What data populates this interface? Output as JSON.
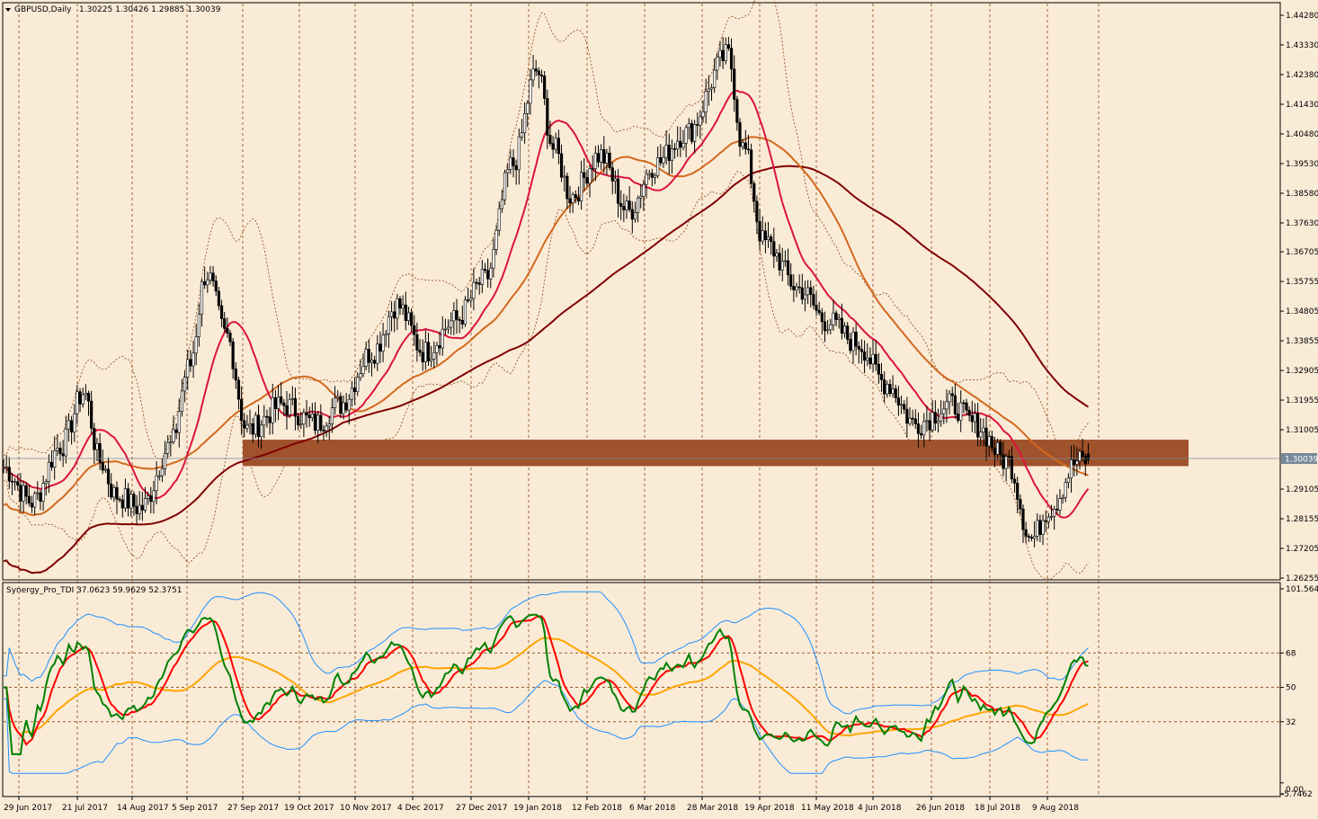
{
  "main_panel": {
    "symbol_label": "GBPUSD,Daily",
    "ohlc_label": "1.30225 1.30426 1.29885 1.30039",
    "current_price_label": "1.30039",
    "price_labels": [
      "1.44280",
      "1.43330",
      "1.42380",
      "1.41430",
      "1.40480",
      "1.39530",
      "1.38580",
      "1.37630",
      "1.36705",
      "1.35755",
      "1.34805",
      "1.33855",
      "1.32905",
      "1.31955",
      "1.31005",
      "1.30039",
      "1.29105",
      "1.28155",
      "1.27205",
      "1.26255"
    ]
  },
  "indicator_panel": {
    "label": "Synergy_Pro_TDI 37.0623 59.9629 52.3751",
    "level_labels": [
      "101.5643",
      "68",
      "50",
      "32",
      "0.00",
      "-5.7462"
    ]
  },
  "time_axis": {
    "labels": [
      "29 Jun 2017",
      "21 Jul 2017",
      "14 Aug 2017",
      "5 Sep 2017",
      "27 Sep 2017",
      "19 Oct 2017",
      "10 Nov 2017",
      "4 Dec 2017",
      "27 Dec 2017",
      "19 Jan 2018",
      "12 Feb 2018",
      "6 Mar 2018",
      "28 Mar 2018",
      "19 Apr 2018",
      "11 May 2018",
      "4 Jun 2018",
      "26 Jun 2018",
      "18 Jul 2018",
      "9 Aug 2018"
    ]
  },
  "colors": {
    "background": "#FAEBD7",
    "candle": "#000000",
    "ma_fast": "#DC143C",
    "ma_mid": "#D2691E",
    "ma_slow": "#800000",
    "zone": "#A0522D",
    "bands": "#8B4513",
    "rsi_line": "#008000",
    "signal_line": "#FF0000",
    "base_line": "#FFA500",
    "vol_band": "#1E90FF"
  },
  "chart_data": {
    "type": "candlestick",
    "symbol": "GBPUSD",
    "timeframe": "Daily",
    "last_bar": {
      "open": 1.30225,
      "high": 1.30426,
      "low": 1.29885,
      "close": 1.30039
    },
    "y_range": [
      1.26255,
      1.4428
    ],
    "x_range": [
      "29 Jun 2017",
      "9 Aug 2018"
    ],
    "zone": {
      "from": "27 Sep 2017",
      "low": 1.301,
      "high": 1.304
    },
    "close_path": [
      [
        "29 Jun 2017",
        1.298
      ],
      [
        "10 Jul 2017",
        1.287
      ],
      [
        "21 Jul 2017",
        1.305
      ],
      [
        "31 Jul 2017",
        1.322
      ],
      [
        "7 Aug 2017",
        1.3
      ],
      [
        "14 Aug 2017",
        1.289
      ],
      [
        "24 Aug 2017",
        1.285
      ],
      [
        "5 Sep 2017",
        1.305
      ],
      [
        "12 Sep 2017",
        1.33
      ],
      [
        "19 Sep 2017",
        1.36
      ],
      [
        "27 Sep 2017",
        1.34
      ],
      [
        "5 Oct 2017",
        1.31
      ],
      [
        "19 Oct 2017",
        1.318
      ],
      [
        "1 Nov 2017",
        1.312
      ],
      [
        "10 Nov 2017",
        1.318
      ],
      [
        "24 Nov 2017",
        1.335
      ],
      [
        "4 Dec 2017",
        1.35
      ],
      [
        "15 Dec 2017",
        1.335
      ],
      [
        "27 Dec 2017",
        1.345
      ],
      [
        "8 Jan 2018",
        1.358
      ],
      [
        "19 Jan 2018",
        1.395
      ],
      [
        "29 Jan 2018",
        1.425
      ],
      [
        "5 Feb 2018",
        1.4
      ],
      [
        "12 Feb 2018",
        1.385
      ],
      [
        "23 Feb 2018",
        1.398
      ],
      [
        "6 Mar 2018",
        1.38
      ],
      [
        "16 Mar 2018",
        1.395
      ],
      [
        "28 Mar 2018",
        1.405
      ],
      [
        "13 Apr 2018",
        1.43
      ],
      [
        "19 Apr 2018",
        1.4
      ],
      [
        "27 Apr 2018",
        1.37
      ],
      [
        "11 May 2018",
        1.355
      ],
      [
        "22 May 2018",
        1.345
      ],
      [
        "4 Jun 2018",
        1.338
      ],
      [
        "15 Jun 2018",
        1.325
      ],
      [
        "26 Jun 2018",
        1.312
      ],
      [
        "10 Jul 2018",
        1.318
      ],
      [
        "18 Jul 2018",
        1.312
      ],
      [
        "31 Jul 2018",
        1.3
      ],
      [
        "9 Aug 2018",
        1.275
      ],
      [
        "16 Aug 2018",
        1.285
      ],
      [
        "27 Aug 2018",
        1.3
      ]
    ],
    "series": [
      {
        "name": "Synergy_Pro_TDI",
        "values": [
          37.0623,
          59.9629,
          52.3751
        ]
      }
    ],
    "indicator_levels": [
      68,
      50,
      32
    ],
    "indicator_range": [
      -5.7462,
      101.5643
    ]
  }
}
